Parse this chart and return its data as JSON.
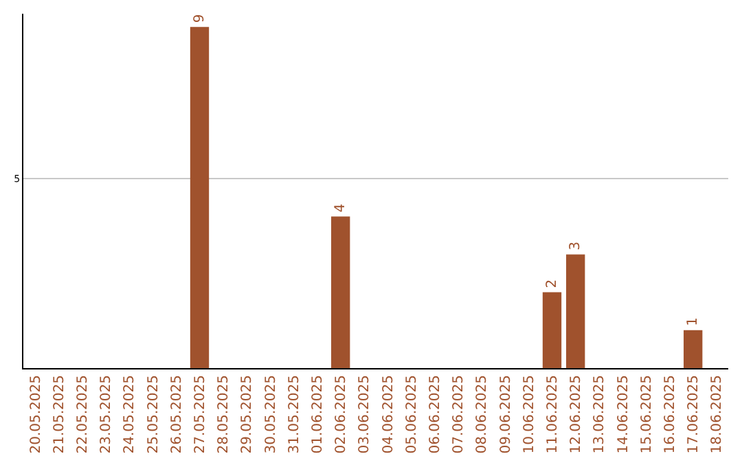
{
  "chart_data": {
    "type": "bar",
    "categories": [
      "20.05.2025",
      "21.05.2025",
      "22.05.2025",
      "23.05.2025",
      "24.05.2025",
      "25.05.2025",
      "26.05.2025",
      "27.05.2025",
      "28.05.2025",
      "29.05.2025",
      "30.05.2025",
      "31.05.2025",
      "01.06.2025",
      "02.06.2025",
      "03.06.2025",
      "04.06.2025",
      "05.06.2025",
      "06.06.2025",
      "07.06.2025",
      "08.06.2025",
      "09.06.2025",
      "10.06.2025",
      "11.06.2025",
      "12.06.2025",
      "13.06.2025",
      "14.06.2025",
      "15.06.2025",
      "16.06.2025",
      "17.06.2025",
      "18.06.2025"
    ],
    "values": [
      0,
      0,
      0,
      0,
      0,
      0,
      0,
      9,
      0,
      0,
      0,
      0,
      0,
      4,
      0,
      0,
      0,
      0,
      0,
      0,
      0,
      0,
      2,
      3,
      0,
      0,
      0,
      0,
      1,
      0
    ],
    "value_labels": [
      null,
      null,
      null,
      null,
      null,
      null,
      null,
      "9",
      null,
      null,
      null,
      null,
      null,
      "4",
      null,
      null,
      null,
      null,
      null,
      null,
      null,
      null,
      "2",
      "3",
      null,
      null,
      null,
      null,
      "1",
      null
    ],
    "color": "#a0522d",
    "ylim": [
      0,
      9.35
    ],
    "yticks": [
      5
    ],
    "grid": "y",
    "legend": false
  }
}
